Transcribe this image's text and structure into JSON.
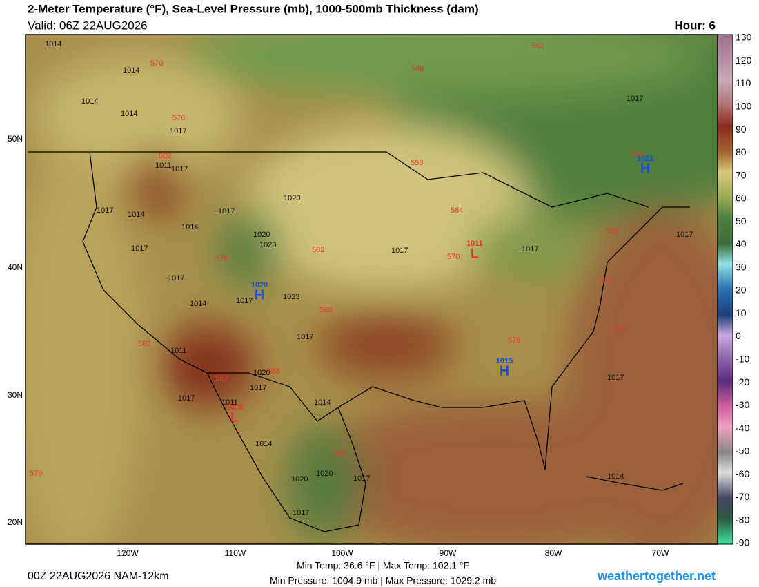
{
  "header": {
    "title": "2-Meter Temperature (°F), Sea-Level Pressure (mb), 1000-500mb Thickness (dam)",
    "valid": "Valid: 06Z 22AUG2026",
    "hour": "Hour: 6"
  },
  "colorbar": {
    "ticks": [
      "130",
      "120",
      "110",
      "100",
      "90",
      "80",
      "70",
      "60",
      "50",
      "40",
      "30",
      "20",
      "10",
      "0",
      "-10",
      "-20",
      "-30",
      "-40",
      "-50",
      "-60",
      "-70",
      "-80",
      "-90"
    ]
  },
  "map": {
    "lat_labels": [
      "50N",
      "40N",
      "30N",
      "20N"
    ],
    "lon_labels": [
      "120W",
      "110W",
      "100W",
      "90W",
      "80W",
      "70W"
    ],
    "isobar_labels": [
      "1014",
      "1014",
      "1014",
      "1014",
      "1017",
      "1017",
      "1011",
      "1017",
      "1014",
      "1014",
      "1017",
      "1020",
      "1020",
      "1017",
      "1017",
      "1014",
      "1020",
      "1023",
      "1017",
      "1011",
      "1017",
      "1017",
      "1020",
      "1011",
      "1014",
      "1017",
      "1014",
      "1017",
      "1017",
      "1017",
      "1017",
      "1017",
      "1014",
      "1020",
      "1020",
      "1017",
      "1017"
    ],
    "thickness_labels": [
      "570",
      "576",
      "582",
      "552",
      "546",
      "558",
      "564",
      "570",
      "576",
      "582",
      "588",
      "588",
      "582",
      "576",
      "558",
      "564",
      "570",
      "576",
      "582",
      "576",
      "582"
    ],
    "centers": [
      {
        "symbol": "H",
        "label": "1029"
      },
      {
        "symbol": "H",
        "label": "1021"
      },
      {
        "symbol": "H",
        "label": "1015"
      },
      {
        "symbol": "L",
        "label": "1011"
      },
      {
        "symbol": "L",
        "label": "1010"
      }
    ]
  },
  "footer": {
    "run": "00Z 22AUG2026 NAM-12km",
    "temps": "Min Temp:  36.6 °F | Max Temp: 102.1 °F",
    "pressures": "Min Pressure: 1004.9 mb | Max Pressure: 1029.2 mb",
    "site": "weathertogether.net"
  }
}
